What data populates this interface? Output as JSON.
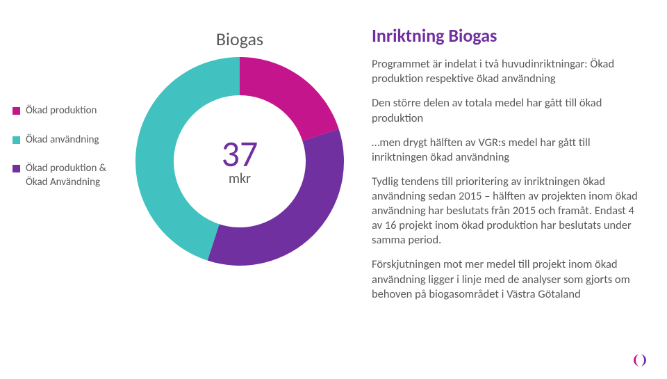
{
  "slide_bg": "#ffffff",
  "text_color": "#595959",
  "accent_purple": "#7030a0",
  "legend": {
    "items": [
      {
        "label": "Ökad produktion",
        "color": "#c5158c"
      },
      {
        "label": "Ökad användning",
        "color": "#41c1c0"
      },
      {
        "label": "Ökad produktion & Ökad Användning",
        "color": "#7030a0"
      }
    ],
    "fontsize": 15
  },
  "chart": {
    "title": "Biogas",
    "title_fontsize": 26,
    "type": "donut",
    "center_number": "37",
    "center_unit": "mkr",
    "center_number_color": "#7030a0",
    "center_number_fontsize": 52,
    "center_unit_fontsize": 20,
    "outer_radius": 150,
    "inner_radius": 95,
    "background_color": "#ffffff",
    "slices": [
      {
        "label": "Ökad produktion",
        "value": 20,
        "color": "#c5158c"
      },
      {
        "label": "Ökad produktion & Ökad Användning",
        "value": 35,
        "color": "#7030a0"
      },
      {
        "label": "Ökad användning",
        "value": 45,
        "color": "#41c1c0"
      }
    ]
  },
  "text": {
    "title": "Inriktning Biogas",
    "title_color": "#7030a0",
    "title_fontsize": 26,
    "paragraphs": [
      "Programmet är indelat i två huvudinriktningar: Ökad produktion respektive ökad användning",
      "Den större delen av totala medel har gått till ökad produktion",
      "…men drygt hälften av VGR:s medel har gått till inriktningen ökad användning",
      "Tydlig tendens till prioritering av inriktningen ökad användning sedan 2015 – hälften av projekten inom ökad användning har beslutats från 2015 och framåt. Endast 4 av 16 projekt inom ökad produktion har beslutats under samma period.",
      "Förskjutningen mot mer medel till projekt inom ökad användning ligger i linje med de analyser som gjorts om behoven på biogasområdet i Västra Götaland"
    ],
    "body_fontsize": 16.5
  },
  "logo": {
    "left_color": "#c5158c",
    "right_color": "#7030a0"
  }
}
